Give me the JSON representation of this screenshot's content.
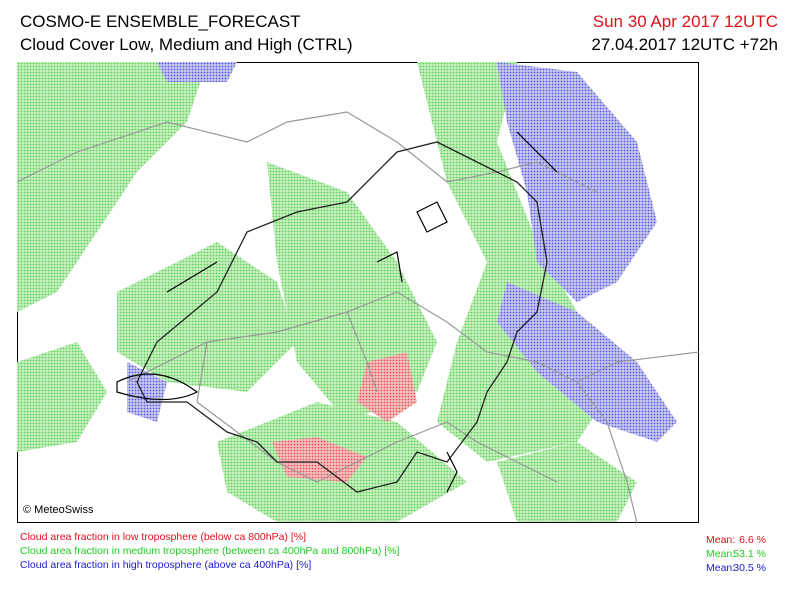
{
  "header": {
    "title": "COSMO-E ENSEMBLE_FORECAST",
    "subtitle": "Cloud Cover Low, Medium and High (CTRL)",
    "valid_time": "Sun 30 Apr 2017 12UTC",
    "run_info": "27.04.2017 12UTC +72h"
  },
  "map": {
    "copyright": "© MeteoSwiss"
  },
  "legend": [
    {
      "label": "Cloud area fraction in low troposphere (below ca 800hPa) [%]",
      "mean_label": "Mean:",
      "mean": "6.6 %",
      "color": "#e0101a"
    },
    {
      "label": "Cloud area fraction in medium troposphere (between ca 400hPa and 800hPa) [%]",
      "mean_label": "Mean:",
      "mean": "53.1 %",
      "color": "#22cc22"
    },
    {
      "label": "Cloud area fraction in high troposphere (above ca 400hPa) [%]",
      "mean_label": "Mean:",
      "mean": "30.5 %",
      "color": "#1a1ad0"
    }
  ]
}
